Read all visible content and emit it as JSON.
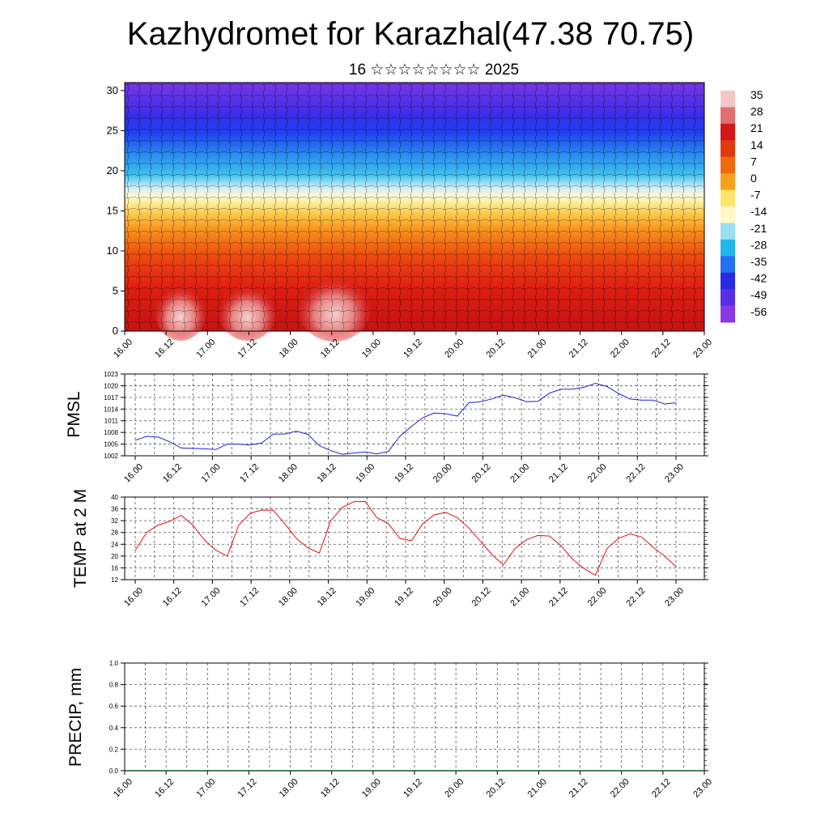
{
  "header": {
    "title": "Kazhydromet for Karazhal(47.38 70.75)",
    "date_line": "16 ☆☆☆☆☆☆☆☆ 2025"
  },
  "time_labels": [
    "16.00",
    "16.12",
    "17.00",
    "17.12",
    "18.00",
    "18.12",
    "19.00",
    "19.12",
    "20.00",
    "20.12",
    "21.00",
    "21.12",
    "22.00",
    "22.12",
    "23.00"
  ],
  "chart_data": [
    {
      "id": "cross-section",
      "type": "heatmap",
      "description_axes": {
        "y_ticks": [
          0,
          5,
          10,
          15,
          20,
          25,
          30
        ],
        "ylim": [
          0,
          31
        ]
      },
      "colorbar": {
        "labels": [
          "35",
          "28",
          "21",
          "14",
          "7",
          "0",
          "-7",
          "-14",
          "-21",
          "-28",
          "-35",
          "-42",
          "-49",
          "-56"
        ],
        "colors": [
          "#f4c6c6",
          "#e07070",
          "#d11717",
          "#e23a0f",
          "#f06a10",
          "#f8a020",
          "#fde46a",
          "#fff7c8",
          "#9be0f0",
          "#25b6ee",
          "#2470f0",
          "#2a2ae6",
          "#5a2ee8",
          "#8838e6"
        ],
        "range": [
          -60,
          38
        ]
      }
    },
    {
      "id": "pmsl",
      "type": "line",
      "ylabel": "PMSL",
      "yticks": [
        1002,
        1005,
        1008,
        1011,
        1014,
        1017,
        1020,
        1023
      ],
      "ylim": [
        1002,
        1023
      ],
      "color": "#2020d0",
      "x": [
        0,
        1,
        2,
        3,
        4,
        5,
        6,
        7,
        8,
        9,
        10,
        11,
        12,
        13,
        14,
        15,
        16,
        17,
        18,
        19,
        20,
        21,
        22,
        23,
        24,
        25,
        26,
        27,
        28
      ],
      "values": [
        1006.0,
        1007.0,
        1006.8,
        1005.6,
        1004.0,
        1003.9,
        1003.8,
        1003.6,
        1005.0,
        1005.0,
        1004.8,
        1005.3,
        1007.6,
        1007.6,
        1008.3,
        1007.5,
        1004.6,
        1003.3,
        1002.4,
        1002.7,
        1003.0,
        1002.5,
        1003.1,
        1007.0,
        1009.5,
        1011.8,
        1013.0,
        1012.8,
        1012.2
      ]
    },
    {
      "id": "temp",
      "type": "line",
      "ylabel": "TEMP at 2 M",
      "yticks": [
        12,
        16,
        20,
        24,
        28,
        32,
        36,
        40
      ],
      "ylim": [
        12,
        40
      ],
      "color": "#e01010",
      "x": [
        0,
        1,
        2,
        3,
        4,
        5,
        6,
        7,
        8,
        9,
        10,
        11,
        12,
        13,
        14,
        15,
        16,
        17,
        18,
        19,
        20,
        21,
        22,
        23,
        24,
        25,
        26,
        27,
        28
      ],
      "values": [
        22.0,
        28.0,
        30.5,
        31.8,
        33.8,
        30.5,
        25.5,
        22.0,
        20.0,
        30.5,
        34.5,
        35.6,
        35.5,
        31.0,
        26.0,
        22.8,
        21.0,
        32.0,
        36.5,
        38.4,
        38.5,
        33.0,
        31.0,
        26.0,
        25.2,
        31.0,
        34.0,
        34.8,
        33.0
      ]
    },
    {
      "id": "precip",
      "type": "line",
      "ylabel": "PRECIP, mm",
      "yticks": [
        "0.0",
        "0.2",
        "0.4",
        "0.6",
        "0.8",
        "1.0"
      ],
      "ylim": [
        0,
        1
      ],
      "color": "#0a5a2a",
      "values": [
        0,
        0,
        0,
        0,
        0,
        0,
        0,
        0,
        0,
        0,
        0,
        0,
        0,
        0,
        0,
        0,
        0,
        0,
        0,
        0,
        0,
        0,
        0,
        0,
        0,
        0,
        0,
        0,
        0
      ]
    }
  ],
  "series_tail": {
    "pmsl": [
      1015.6,
      1015.9,
      1016.6,
      1017.6,
      1016.9,
      1015.9,
      1016.0,
      1018.1,
      1019.1,
      1019.1,
      1019.6,
      1020.6,
      1019.8,
      1018.0,
      1016.6,
      1016.3,
      1016.3,
      1015.3,
      1015.6
    ],
    "temp": [
      29.5,
      25.0,
      20.5,
      17.0,
      22.5,
      25.5,
      27.0,
      26.8,
      23.5,
      19.0,
      15.8,
      13.5,
      22.5,
      26.0,
      27.5,
      26.5,
      23.0,
      20.0,
      16.5
    ]
  }
}
